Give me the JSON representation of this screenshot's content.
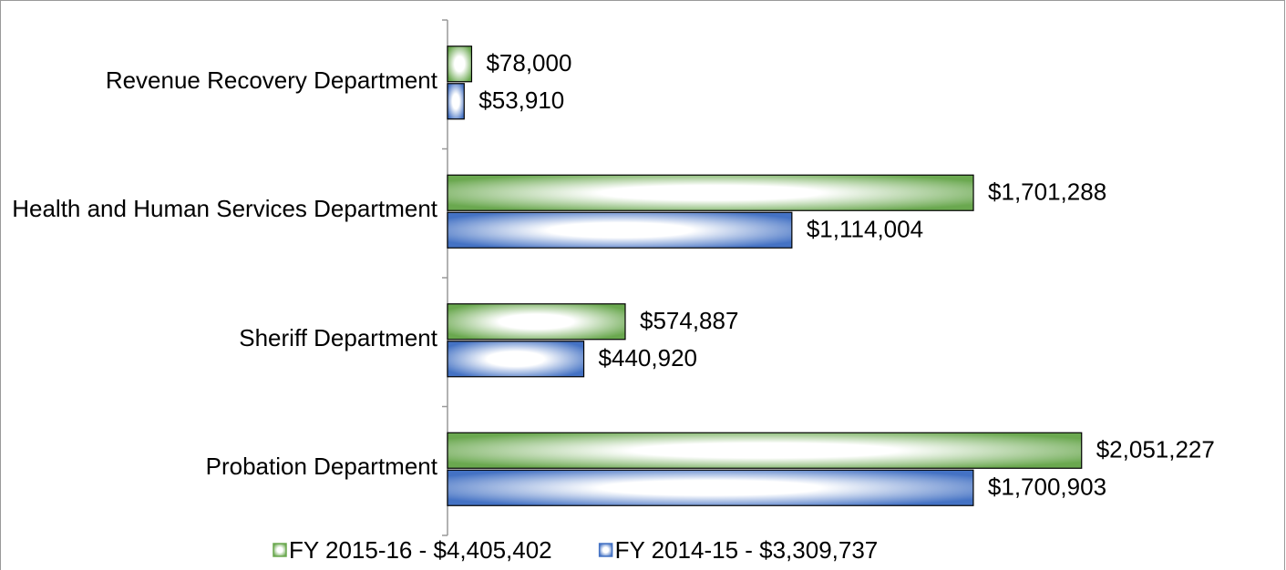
{
  "chart_data": {
    "type": "hbar",
    "categories": [
      "Revenue Recovery Department",
      "Health and Human Services Department",
      "Sheriff Department",
      "Probation Department"
    ],
    "series": [
      {
        "name": "FY 2015-16 - $4,405,402",
        "color": "#6aa84f",
        "values": [
          78000,
          1701288,
          574887,
          2051227
        ],
        "value_labels": [
          "$78,000",
          "$1,701,288",
          "$574,887",
          "$2,051,227"
        ]
      },
      {
        "name": "FY 2014-15 - $3,309,737",
        "color": "#4472c4",
        "values": [
          53910,
          1114004,
          440920,
          1700903
        ],
        "value_labels": [
          "$53,910",
          "$1,114,004",
          "$440,920",
          "$1,700,903"
        ]
      }
    ],
    "xlim": [
      0,
      2680000
    ],
    "legend": "bottom"
  }
}
